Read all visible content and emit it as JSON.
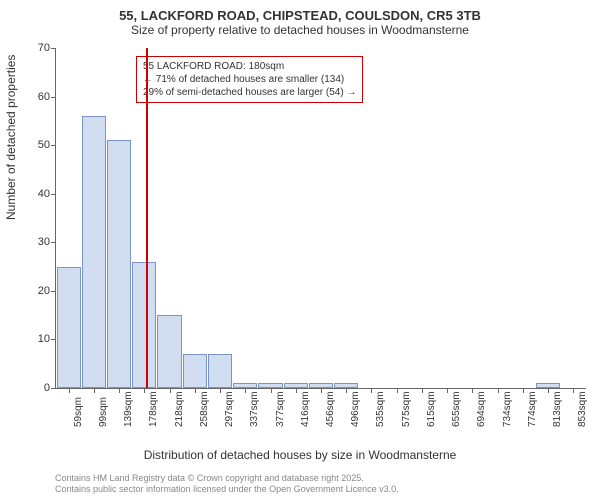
{
  "title": "55, LACKFORD ROAD, CHIPSTEAD, COULSDON, CR5 3TB",
  "subtitle": "Size of property relative to detached houses in Woodmansterne",
  "y_axis_label": "Number of detached properties",
  "x_axis_label": "Distribution of detached houses by size in Woodmansterne",
  "chart": {
    "type": "bar",
    "ylim": [
      0,
      70
    ],
    "ytick_step": 10,
    "yticks": [
      0,
      10,
      20,
      30,
      40,
      50,
      60,
      70
    ],
    "xticks": [
      "59sqm",
      "99sqm",
      "139sqm",
      "178sqm",
      "218sqm",
      "258sqm",
      "297sqm",
      "337sqm",
      "377sqm",
      "416sqm",
      "456sqm",
      "496sqm",
      "535sqm",
      "575sqm",
      "615sqm",
      "655sqm",
      "694sqm",
      "734sqm",
      "774sqm",
      "813sqm",
      "853sqm"
    ],
    "values": [
      25,
      56,
      51,
      26,
      15,
      7,
      7,
      1,
      1,
      1,
      1,
      1,
      0,
      0,
      0,
      0,
      0,
      0,
      0,
      1,
      0
    ],
    "bar_fill": "#d1ddf0",
    "bar_stroke": "#7a94c4",
    "background_color": "#ffffff",
    "axis_color": "#666666",
    "text_color": "#333333",
    "title_fontsize": 13,
    "label_fontsize": 12,
    "tick_fontsize": 11,
    "xtick_fontsize": 10
  },
  "marker": {
    "position_sqm": 180,
    "color": "#cc0000",
    "line_width": 2
  },
  "annotation": {
    "line1": "55 LACKFORD ROAD: 180sqm",
    "line2": "← 71% of detached houses are smaller (134)",
    "line3": "29% of semi-detached houses are larger (54) →",
    "border_color": "#cc0000",
    "text_color": "#333333",
    "fontsize": 10
  },
  "footer": {
    "line1": "Contains HM Land Registry data © Crown copyright and database right 2025.",
    "line2": "Contains public sector information licensed under the Open Government Licence v3.0.",
    "color": "#888888",
    "fontsize": 9
  }
}
